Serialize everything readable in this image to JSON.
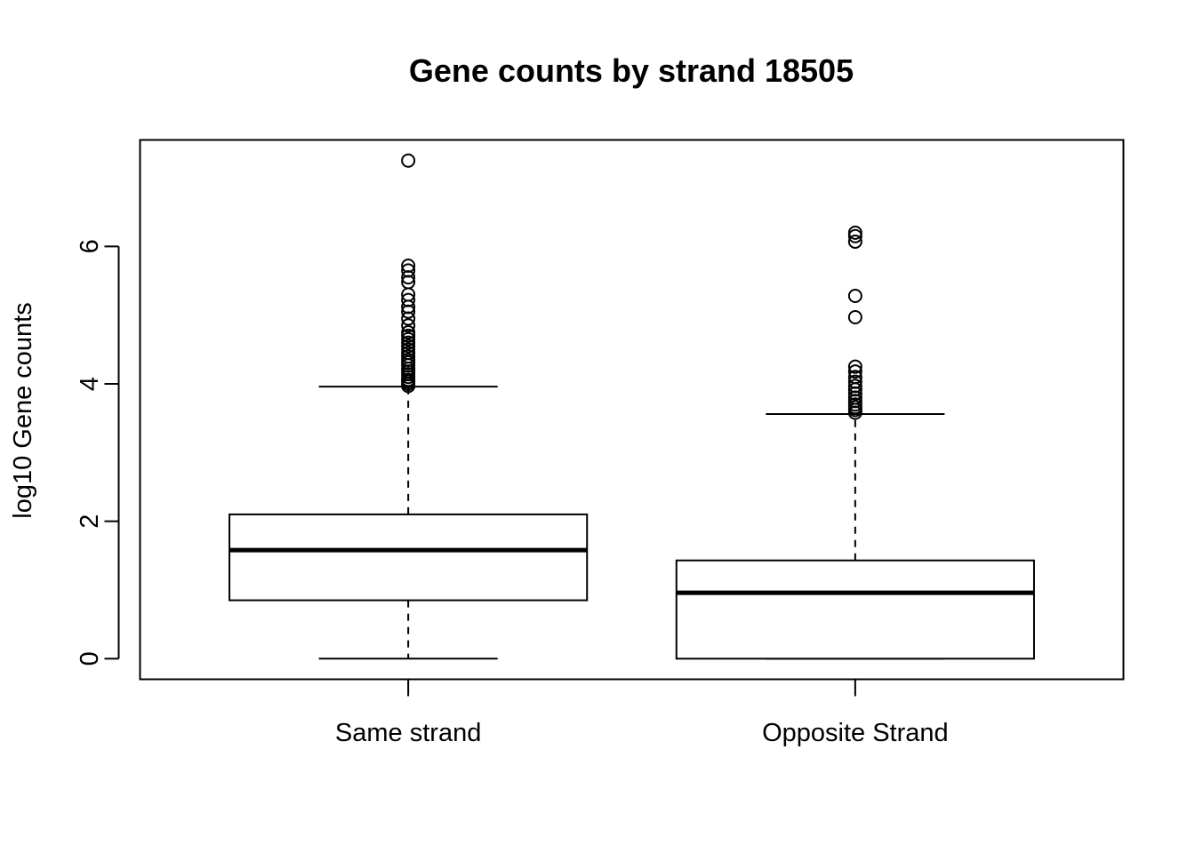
{
  "chart_data": {
    "type": "box",
    "title": "Gene counts by strand 18505",
    "xlabel": "",
    "ylabel": "log10 Gene counts",
    "ylim": [
      -0.3,
      7.55
    ],
    "yticks": [
      0,
      2,
      4,
      6
    ],
    "grid": false,
    "legend": "none",
    "colors": {
      "box_fill": "#ffffff",
      "stroke": "#000000",
      "background": "#ffffff"
    },
    "categories": [
      "Same strand",
      "Opposite Strand"
    ],
    "series": [
      {
        "category": "Same strand",
        "whisker_low": 0,
        "q1": 0.85,
        "median": 1.58,
        "q3": 2.1,
        "whisker_high": 3.96,
        "outliers": [
          3.97,
          4.0,
          4.03,
          4.06,
          4.1,
          4.14,
          4.18,
          4.22,
          4.27,
          4.31,
          4.35,
          4.4,
          4.45,
          4.5,
          4.55,
          4.6,
          4.65,
          4.7,
          4.75,
          4.85,
          4.95,
          5.05,
          5.12,
          5.22,
          5.3,
          5.48,
          5.55,
          5.65,
          5.72,
          7.25
        ]
      },
      {
        "category": "Opposite Strand",
        "whisker_low": 0,
        "q1": 0,
        "median": 0.96,
        "q3": 1.43,
        "whisker_high": 3.56,
        "outliers": [
          3.58,
          3.62,
          3.66,
          3.7,
          3.75,
          3.8,
          3.86,
          3.92,
          3.97,
          4.03,
          4.1,
          4.18,
          4.25,
          4.97,
          5.28,
          6.07,
          6.15,
          6.2
        ]
      }
    ]
  }
}
